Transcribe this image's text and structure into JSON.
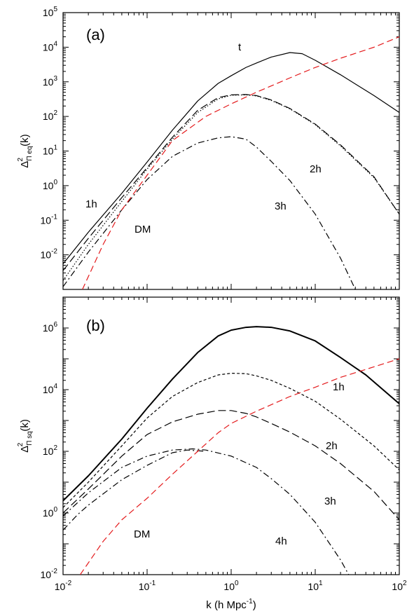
{
  "chart_data": [
    {
      "type": "line",
      "panel_label": "(a)",
      "ylabel": "Δ²Π eq(k)",
      "ylabel_parts": {
        "base": "Δ",
        "sup": "2",
        "sub": "Π eq",
        "tail": "(k)"
      },
      "xscale": "log",
      "yscale": "log",
      "xlim": [
        0.01,
        100
      ],
      "ylim": [
        0.001,
        100000
      ],
      "x_tick_values": [
        0.01,
        0.1,
        1,
        10,
        100
      ],
      "y_ticks": [
        {
          "v": 0.01,
          "base": "10",
          "exp": "-2"
        },
        {
          "v": 0.1,
          "base": "10",
          "exp": "-1"
        },
        {
          "v": 1,
          "base": "10",
          "exp": "0"
        },
        {
          "v": 10,
          "base": "10",
          "exp": "1"
        },
        {
          "v": 100,
          "base": "10",
          "exp": "2"
        },
        {
          "v": 1000,
          "base": "10",
          "exp": "3"
        },
        {
          "v": 10000,
          "base": "10",
          "exp": "4"
        },
        {
          "v": 100000,
          "base": "10",
          "exp": "5"
        }
      ],
      "series": [
        {
          "label": "t",
          "style": "solid",
          "color": "#000000",
          "points": [
            [
              0.01,
              0.0055
            ],
            [
              0.02,
              0.045
            ],
            [
              0.05,
              0.6
            ],
            [
              0.1,
              4.8
            ],
            [
              0.2,
              40
            ],
            [
              0.4,
              280
            ],
            [
              0.7,
              900
            ],
            [
              1,
              1500
            ],
            [
              1.5,
              2600
            ],
            [
              2,
              3500
            ],
            [
              3,
              5200
            ],
            [
              5,
              7000
            ],
            [
              7,
              6500
            ],
            [
              10,
              4200
            ],
            [
              20,
              1600
            ],
            [
              50,
              400
            ],
            [
              100,
              130
            ]
          ]
        },
        {
          "label": "1h",
          "style": "longdash",
          "color": "#000000",
          "points": [
            [
              0.01,
              0.0035
            ],
            [
              0.02,
              0.03
            ],
            [
              0.05,
              0.45
            ],
            [
              0.1,
              3.3
            ],
            [
              0.2,
              25
            ],
            [
              0.4,
              150
            ],
            [
              0.7,
              350
            ],
            [
              1,
              420
            ],
            [
              1.5,
              430
            ],
            [
              2,
              400
            ],
            [
              3,
              300
            ],
            [
              5,
              170
            ],
            [
              10,
              60
            ],
            [
              20,
              15
            ],
            [
              50,
              1.8
            ],
            [
              100,
              0.15
            ]
          ]
        },
        {
          "label": "2h",
          "style": "dotted",
          "color": "#000000",
          "points": [
            [
              0.01,
              0.0018
            ],
            [
              0.02,
              0.02
            ],
            [
              0.05,
              0.35
            ],
            [
              0.1,
              3
            ],
            [
              0.2,
              22
            ],
            [
              0.4,
              130
            ],
            [
              0.7,
              320
            ],
            [
              1,
              410
            ],
            [
              1.5,
              420
            ],
            [
              2,
              390
            ],
            [
              3,
              290
            ],
            [
              5,
              165
            ],
            [
              10,
              58
            ],
            [
              20,
              14
            ],
            [
              50,
              1.7
            ],
            [
              100,
              0.15
            ]
          ]
        },
        {
          "label": "3h",
          "style": "dashdot",
          "color": "#000000",
          "points": [
            [
              0.01,
              0.0012
            ],
            [
              0.02,
              0.012
            ],
            [
              0.05,
              0.2
            ],
            [
              0.1,
              1.5
            ],
            [
              0.2,
              7
            ],
            [
              0.4,
              17
            ],
            [
              0.7,
              24
            ],
            [
              1,
              26
            ],
            [
              1.5,
              22
            ],
            [
              2,
              13
            ],
            [
              3,
              5
            ],
            [
              5,
              1.4
            ],
            [
              10,
              0.15
            ],
            [
              20,
              0.008
            ],
            [
              30,
              0.001
            ]
          ]
        },
        {
          "label": "DM",
          "style": "dash",
          "color": "#e41a1c",
          "points": [
            [
              0.017,
              0.001
            ],
            [
              0.03,
              0.02
            ],
            [
              0.05,
              0.2
            ],
            [
              0.1,
              2
            ],
            [
              0.2,
              20
            ],
            [
              0.5,
              100
            ],
            [
              1,
              230
            ],
            [
              2,
              500
            ],
            [
              5,
              1300
            ],
            [
              10,
              2600
            ],
            [
              20,
              4800
            ],
            [
              50,
              10000
            ],
            [
              100,
              20000
            ]
          ]
        }
      ],
      "annotations": [
        "t",
        "1h",
        "2h",
        "3h",
        "DM"
      ]
    },
    {
      "type": "line",
      "panel_label": "(b)",
      "ylabel": "Δ²Π sq(k)",
      "ylabel_parts": {
        "base": "Δ",
        "sup": "2",
        "sub": "Π sq",
        "tail": "(k)"
      },
      "xlabel_parts": {
        "pre": "k (h Mpc",
        "sup": "-1",
        "post": ")"
      },
      "xlabel": "k (h Mpc-1)",
      "xscale": "log",
      "yscale": "log",
      "xlim": [
        0.01,
        100
      ],
      "ylim": [
        0.01,
        10000000
      ],
      "x_ticks": [
        {
          "v": 0.01,
          "base": "10",
          "exp": "-2"
        },
        {
          "v": 0.1,
          "base": "10",
          "exp": "-1"
        },
        {
          "v": 1,
          "base": "10",
          "exp": "0"
        },
        {
          "v": 10,
          "base": "10",
          "exp": "1"
        },
        {
          "v": 100,
          "base": "10",
          "exp": "2"
        }
      ],
      "y_ticks": [
        {
          "v": 0.01,
          "base": "10",
          "exp": "-2"
        },
        {
          "v": 1,
          "base": "10",
          "exp": "0"
        },
        {
          "v": 100,
          "base": "10",
          "exp": "2"
        },
        {
          "v": 10000,
          "base": "10",
          "exp": "4"
        },
        {
          "v": 1000000,
          "base": "10",
          "exp": "6"
        }
      ],
      "series": [
        {
          "label": "t",
          "style": "solid-thick",
          "color": "#000000",
          "points": [
            [
              0.01,
              2.5
            ],
            [
              0.02,
              16
            ],
            [
              0.05,
              250
            ],
            [
              0.1,
              2500
            ],
            [
              0.2,
              22000
            ],
            [
              0.4,
              160000
            ],
            [
              0.7,
              550000
            ],
            [
              1,
              850000
            ],
            [
              1.5,
              1050000
            ],
            [
              2,
              1100000
            ],
            [
              3,
              1050000
            ],
            [
              5,
              800000
            ],
            [
              10,
              380000
            ],
            [
              20,
              110000
            ],
            [
              40,
              30000
            ],
            [
              100,
              3500
            ]
          ]
        },
        {
          "label": "1h",
          "style": "shortdash",
          "color": "#000000",
          "points": [
            [
              0.01,
              1.5
            ],
            [
              0.02,
              10
            ],
            [
              0.05,
              150
            ],
            [
              0.1,
              1200
            ],
            [
              0.2,
              6000
            ],
            [
              0.4,
              17000
            ],
            [
              0.7,
              30000
            ],
            [
              1,
              34000
            ],
            [
              1.5,
              33000
            ],
            [
              2,
              28000
            ],
            [
              3,
              20000
            ],
            [
              5,
              11000
            ],
            [
              10,
              4200
            ],
            [
              20,
              1100
            ],
            [
              50,
              150
            ],
            [
              100,
              25
            ]
          ]
        },
        {
          "label": "2h",
          "style": "longdash",
          "color": "#000000",
          "points": [
            [
              0.01,
              1
            ],
            [
              0.02,
              6
            ],
            [
              0.05,
              70
            ],
            [
              0.1,
              350
            ],
            [
              0.2,
              900
            ],
            [
              0.4,
              1600
            ],
            [
              0.7,
              2100
            ],
            [
              1,
              2100
            ],
            [
              1.5,
              1700
            ],
            [
              2,
              1300
            ],
            [
              3,
              800
            ],
            [
              5,
              420
            ],
            [
              10,
              150
            ],
            [
              20,
              40
            ],
            [
              50,
              5
            ],
            [
              100,
              0.6
            ]
          ]
        },
        {
          "label": "3h",
          "style": "dashdot",
          "color": "#000000",
          "points": [
            [
              0.01,
              0.8
            ],
            [
              0.02,
              4.5
            ],
            [
              0.05,
              30
            ],
            [
              0.1,
              70
            ],
            [
              0.2,
              110
            ],
            [
              0.35,
              120
            ],
            [
              0.5,
              110
            ],
            [
              1,
              70
            ],
            [
              2,
              30
            ],
            [
              3,
              13
            ],
            [
              5,
              4
            ],
            [
              10,
              0.5
            ],
            [
              20,
              0.03
            ],
            [
              25,
              0.01
            ]
          ]
        },
        {
          "label": "4h",
          "style": "dashdot",
          "color": "#000000",
          "points": [
            [
              0.01,
              0.28
            ],
            [
              0.015,
              0.9
            ],
            [
              0.02,
              1.8
            ],
            [
              0.05,
              12
            ],
            [
              0.1,
              35
            ],
            [
              0.2,
              90
            ],
            [
              0.3,
              110
            ],
            [
              0.5,
              100
            ]
          ]
        },
        {
          "label": "DM",
          "style": "dash",
          "color": "#e41a1c",
          "points": [
            [
              0.016,
              0.01
            ],
            [
              0.03,
              0.12
            ],
            [
              0.05,
              0.6
            ],
            [
              0.1,
              3
            ],
            [
              0.2,
              18
            ],
            [
              0.4,
              100
            ],
            [
              0.7,
              400
            ],
            [
              1,
              800
            ],
            [
              2,
              2000
            ],
            [
              5,
              6000
            ],
            [
              10,
              12000
            ],
            [
              20,
              25000
            ],
            [
              50,
              55000
            ],
            [
              100,
              100000
            ]
          ]
        }
      ],
      "annotations": [
        "1h",
        "2h",
        "3h",
        "4h",
        "DM"
      ]
    }
  ]
}
